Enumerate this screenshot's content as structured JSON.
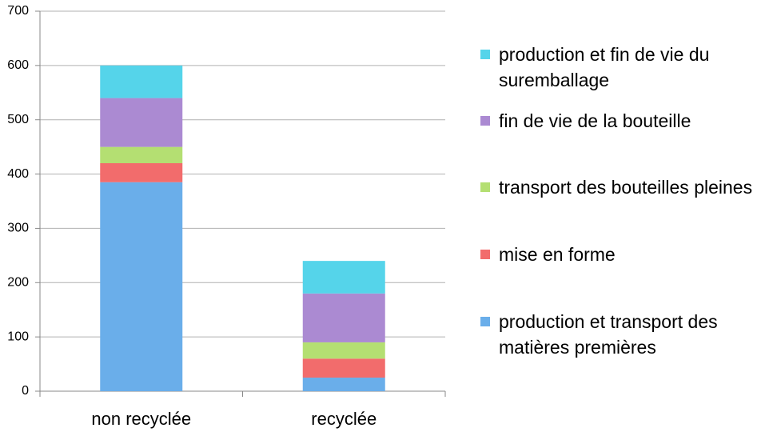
{
  "chart_data": {
    "type": "stacked-bar",
    "categories": [
      "non recyclée",
      "recyclée"
    ],
    "series": [
      {
        "name": "production et transport des matières premières",
        "color": "#6aaeea",
        "values": [
          385,
          25
        ]
      },
      {
        "name": "mise en forme",
        "color": "#f26c6c",
        "values": [
          35,
          35
        ]
      },
      {
        "name": "transport des bouteilles pleines",
        "color": "#b4df72",
        "values": [
          30,
          30
        ]
      },
      {
        "name": "fin de vie de la bouteille",
        "color": "#ab8ad2",
        "values": [
          90,
          90
        ]
      },
      {
        "name": "production et fin de vie du suremballage",
        "color": "#55d4ea",
        "values": [
          60,
          60
        ]
      }
    ],
    "ylim": [
      0,
      700
    ],
    "yticks": [
      0,
      100,
      200,
      300,
      400,
      500,
      600,
      700
    ],
    "grid": true
  }
}
